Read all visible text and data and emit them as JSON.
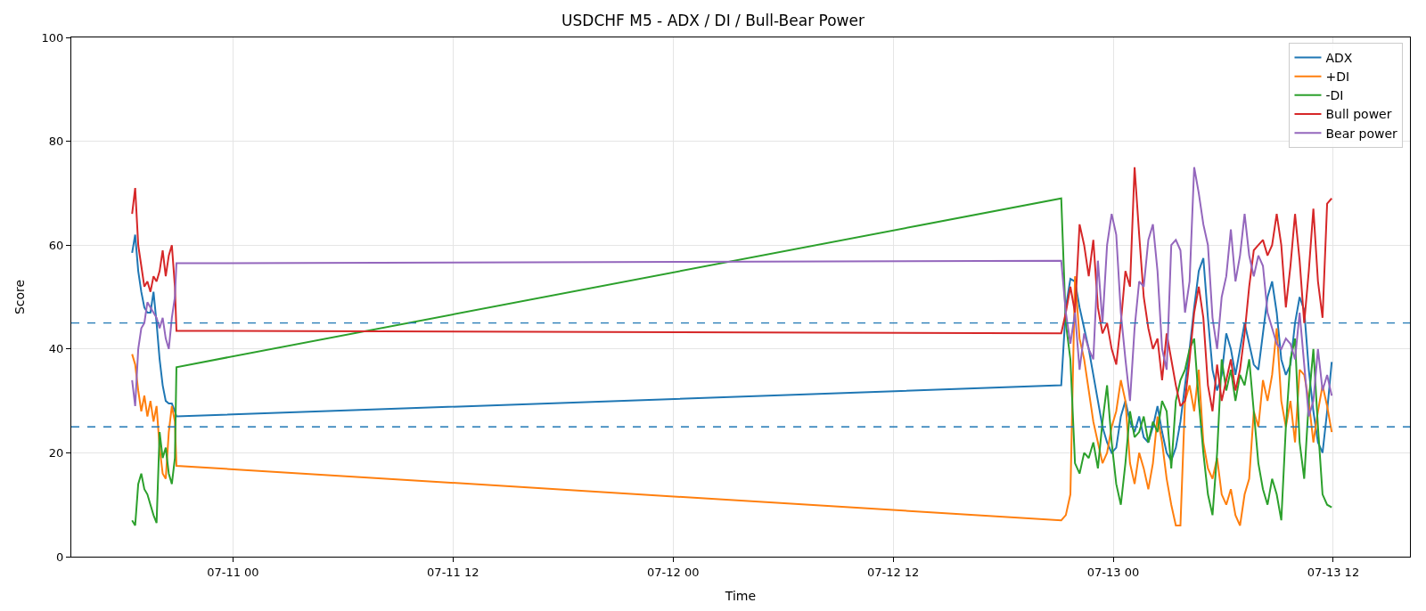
{
  "chart_data": {
    "type": "line",
    "title": "USDCHF M5 - ADX / DI / Bull-Bear Power",
    "xlabel": "Time",
    "ylabel": "Score",
    "x": [
      "--07-10T18:30",
      "--07-10T18:40",
      "--07-10T18:50",
      "--07-10T19:00",
      "--07-10T19:10",
      "--07-10T19:20",
      "--07-10T19:30",
      "--07-10T19:40",
      "--07-10T19:50",
      "--07-10T20:00",
      "--07-10T20:10",
      "--07-10T20:20",
      "--07-10T20:30",
      "--07-10T20:40",
      "--07-10T20:50",
      "--07-10T20:55",
      "--07-12T21:10",
      "--07-12T21:25",
      "--07-12T21:40",
      "--07-12T21:55",
      "--07-12T22:10",
      "--07-12T22:25",
      "--07-12T22:40",
      "--07-12T22:55",
      "--07-12T23:10",
      "--07-12T23:25",
      "--07-12T23:40",
      "--07-12T23:55",
      "--07-13T00:10",
      "--07-13T00:25",
      "--07-13T00:40",
      "--07-13T00:55",
      "--07-13T01:10",
      "--07-13T01:25",
      "--07-13T01:40",
      "--07-13T01:55",
      "--07-13T02:10",
      "--07-13T02:25",
      "--07-13T02:40",
      "--07-13T02:55",
      "--07-13T03:10",
      "--07-13T03:25",
      "--07-13T03:40",
      "--07-13T03:55",
      "--07-13T04:10",
      "--07-13T04:25",
      "--07-13T04:40",
      "--07-13T04:55",
      "--07-13T05:10",
      "--07-13T05:25",
      "--07-13T05:40",
      "--07-13T05:55",
      "--07-13T06:10",
      "--07-13T06:25",
      "--07-13T06:40",
      "--07-13T06:55",
      "--07-13T07:10",
      "--07-13T07:25",
      "--07-13T07:40",
      "--07-13T07:55",
      "--07-13T08:10",
      "--07-13T08:25",
      "--07-13T08:40",
      "--07-13T08:55",
      "--07-13T09:10",
      "--07-13T09:25",
      "--07-13T09:40",
      "--07-13T09:55",
      "--07-13T10:10",
      "--07-13T10:25",
      "--07-13T10:40",
      "--07-13T10:55",
      "--07-13T11:10",
      "--07-13T11:25",
      "--07-13T11:40",
      "--07-13T11:55"
    ],
    "series": [
      {
        "name": "ADX",
        "color": "#1f77b4",
        "values": [
          58.5,
          62,
          55,
          51,
          48,
          47,
          47,
          51,
          45,
          38,
          33,
          30,
          29.5,
          29.5,
          28,
          27,
          33,
          48,
          53.5,
          53,
          48,
          44,
          40,
          35,
          30,
          25,
          22,
          20,
          21,
          27,
          30,
          26,
          24,
          27,
          23,
          22,
          25,
          29,
          24,
          20,
          18.5,
          21,
          26,
          33,
          40,
          48,
          55,
          57.5,
          46,
          36,
          32,
          35,
          43,
          40,
          35,
          40,
          45,
          41,
          37,
          36,
          43,
          50,
          53,
          47,
          38,
          35,
          37,
          45,
          50,
          47.5,
          36,
          28,
          22,
          20,
          28,
          37.5
        ]
      },
      {
        "name": "+DI",
        "color": "#ff7f0e",
        "values": [
          39,
          37,
          32,
          28,
          31,
          27,
          30,
          26,
          29,
          21,
          16,
          15,
          24,
          29,
          26,
          17.5,
          7,
          8,
          12,
          54,
          42,
          38,
          32,
          26,
          22,
          18,
          20,
          25,
          28,
          34,
          30,
          18,
          14,
          20,
          17,
          13,
          18,
          27,
          22,
          15,
          10,
          6,
          6,
          30,
          33,
          28,
          36,
          22,
          17,
          15,
          19,
          12,
          10,
          13,
          8,
          6,
          12,
          15,
          28,
          25,
          34,
          30,
          35,
          44,
          30,
          25,
          30,
          22,
          36,
          35,
          30,
          22,
          28,
          33,
          29,
          24
        ]
      },
      {
        "name": "-DI",
        "color": "#2ca02c",
        "values": [
          7,
          6,
          14,
          16,
          13,
          12,
          10,
          8,
          6.5,
          24,
          19,
          21,
          16,
          14,
          19,
          36.5,
          69,
          45,
          38,
          18,
          16,
          20,
          19,
          22,
          17,
          26,
          33,
          22,
          14,
          10,
          18,
          28,
          23,
          24,
          27,
          22,
          26,
          24,
          30,
          28,
          17,
          30,
          34,
          36,
          40,
          42,
          30,
          20,
          12,
          8,
          20,
          38,
          32,
          36,
          30,
          35,
          33,
          38,
          28,
          18,
          13,
          10,
          15,
          12,
          7,
          25,
          38,
          42,
          22,
          15,
          30,
          40,
          25,
          12,
          10,
          9.5
        ]
      },
      {
        "name": "Bull power",
        "color": "#d62728",
        "values": [
          66,
          71,
          60,
          56,
          52,
          53,
          51,
          54,
          53,
          55,
          59,
          54,
          58,
          60,
          52,
          43.5,
          43,
          47,
          52,
          47,
          64,
          60,
          54,
          61,
          48,
          43,
          45,
          40,
          37,
          45,
          55,
          52,
          75,
          62,
          50,
          44,
          40,
          42,
          34,
          43,
          38,
          33,
          29,
          30,
          38,
          47,
          52,
          46,
          33,
          28,
          37,
          30,
          34,
          38,
          32,
          36,
          43,
          52,
          59,
          60,
          61,
          58,
          60,
          66,
          60,
          48,
          56,
          66,
          57,
          45,
          55,
          67,
          53,
          46,
          68,
          69
        ]
      },
      {
        "name": "Bear power",
        "color": "#9467bd",
        "values": [
          34,
          29,
          40,
          44,
          45,
          49,
          48,
          47,
          46,
          44,
          46,
          42,
          40,
          46,
          50,
          56.5,
          57,
          47,
          41,
          47,
          36,
          43,
          40,
          38,
          57,
          45,
          60,
          66,
          62,
          47,
          38,
          30,
          44,
          53,
          52,
          61,
          64,
          55,
          40,
          36,
          60,
          61,
          59,
          47,
          53,
          75,
          70,
          64,
          60,
          46,
          40,
          50,
          54,
          63,
          53,
          58,
          66,
          58,
          54,
          58,
          56,
          47,
          44,
          41,
          40,
          42,
          41,
          38,
          47,
          37,
          27,
          30,
          40,
          32,
          35,
          31
        ]
      }
    ],
    "xlim": [
      "--07-10T15:11",
      "--07-13T16:11"
    ],
    "xticks": [
      {
        "value": "--07-11T00:00",
        "label": "07-11 00"
      },
      {
        "value": "--07-11T12:00",
        "label": "07-11 12"
      },
      {
        "value": "--07-12T00:00",
        "label": "07-12 00"
      },
      {
        "value": "--07-12T12:00",
        "label": "07-12 12"
      },
      {
        "value": "--07-13T00:00",
        "label": "07-13 00"
      },
      {
        "value": "--07-13T12:00",
        "label": "07-13 12"
      }
    ],
    "ylim": [
      0,
      100
    ],
    "yticks": [
      0,
      20,
      40,
      60,
      80,
      100
    ],
    "ref_lines": [
      {
        "axis": "y",
        "value": 45,
        "color": "#1f77b4",
        "line_style": "dashed"
      },
      {
        "axis": "y",
        "value": 25,
        "color": "#1f77b4",
        "line_style": "dashed"
      }
    ],
    "grid": true,
    "legend": "top right",
    "line_style": "solid"
  }
}
